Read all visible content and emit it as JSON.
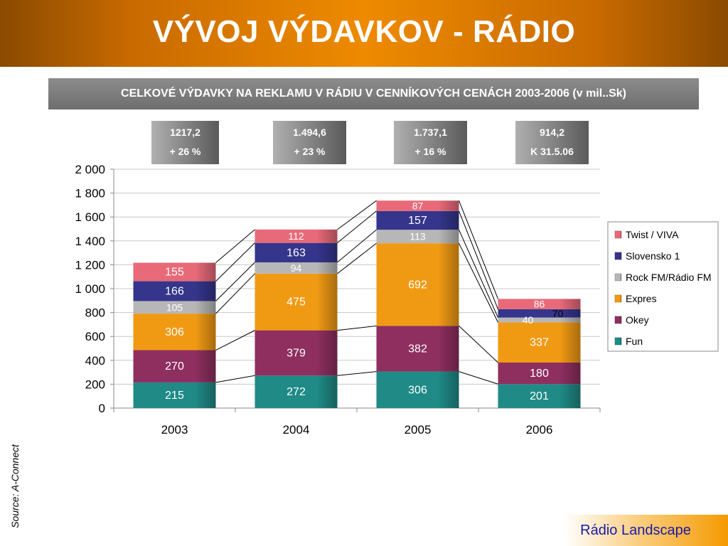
{
  "header": {
    "title": "VÝVOJ VÝDAVKOV - RÁDIO"
  },
  "subtitle": "CELKOVÉ VÝDAVKY NA REKLAMU V RÁDIU V CENNÍKOVÝCH CENÁCH 2003-2006 (v mil..Sk)",
  "totals": [
    {
      "value": "1217,2",
      "note": "+ 26 %"
    },
    {
      "value": "1.494,6",
      "note": "+ 23 %"
    },
    {
      "value": "1.737,1",
      "note": "+ 16 %"
    },
    {
      "value": "914,2",
      "note": "K 31.5.06"
    }
  ],
  "source": "Source: A-Connect",
  "footer": {
    "brand": "Rádio Landscape"
  },
  "chart_data": {
    "type": "bar",
    "stacked": true,
    "categories": [
      "2003",
      "2004",
      "2005",
      "2006"
    ],
    "ylim": [
      0,
      2000
    ],
    "yticks": [
      0,
      200,
      400,
      600,
      800,
      1000,
      1200,
      1400,
      1600,
      1800,
      2000
    ],
    "ytick_labels": [
      "0",
      "200",
      "400",
      "600",
      "800",
      "1 000",
      "1 200",
      "1 400",
      "1 600",
      "1 800",
      "2 000"
    ],
    "grid": true,
    "legend": "right",
    "series": [
      {
        "name": "Fun",
        "values": [
          215,
          272,
          306,
          201
        ],
        "color": "#1f8a86"
      },
      {
        "name": "Okey",
        "values": [
          270,
          379,
          382,
          180
        ],
        "color": "#8e2f60"
      },
      {
        "name": "Expres",
        "values": [
          306,
          475,
          692,
          337
        ],
        "color": "#f09a14"
      },
      {
        "name": "Rock FM/Rádio FM",
        "values": [
          105,
          94,
          113,
          40
        ],
        "color": "#b7b7b7"
      },
      {
        "name": "Slovensko 1",
        "values": [
          166,
          163,
          157,
          70
        ],
        "color": "#35358c"
      },
      {
        "name": "Twist / VIVA",
        "values": [
          155,
          112,
          87,
          86
        ],
        "color": "#e86a78"
      }
    ]
  }
}
